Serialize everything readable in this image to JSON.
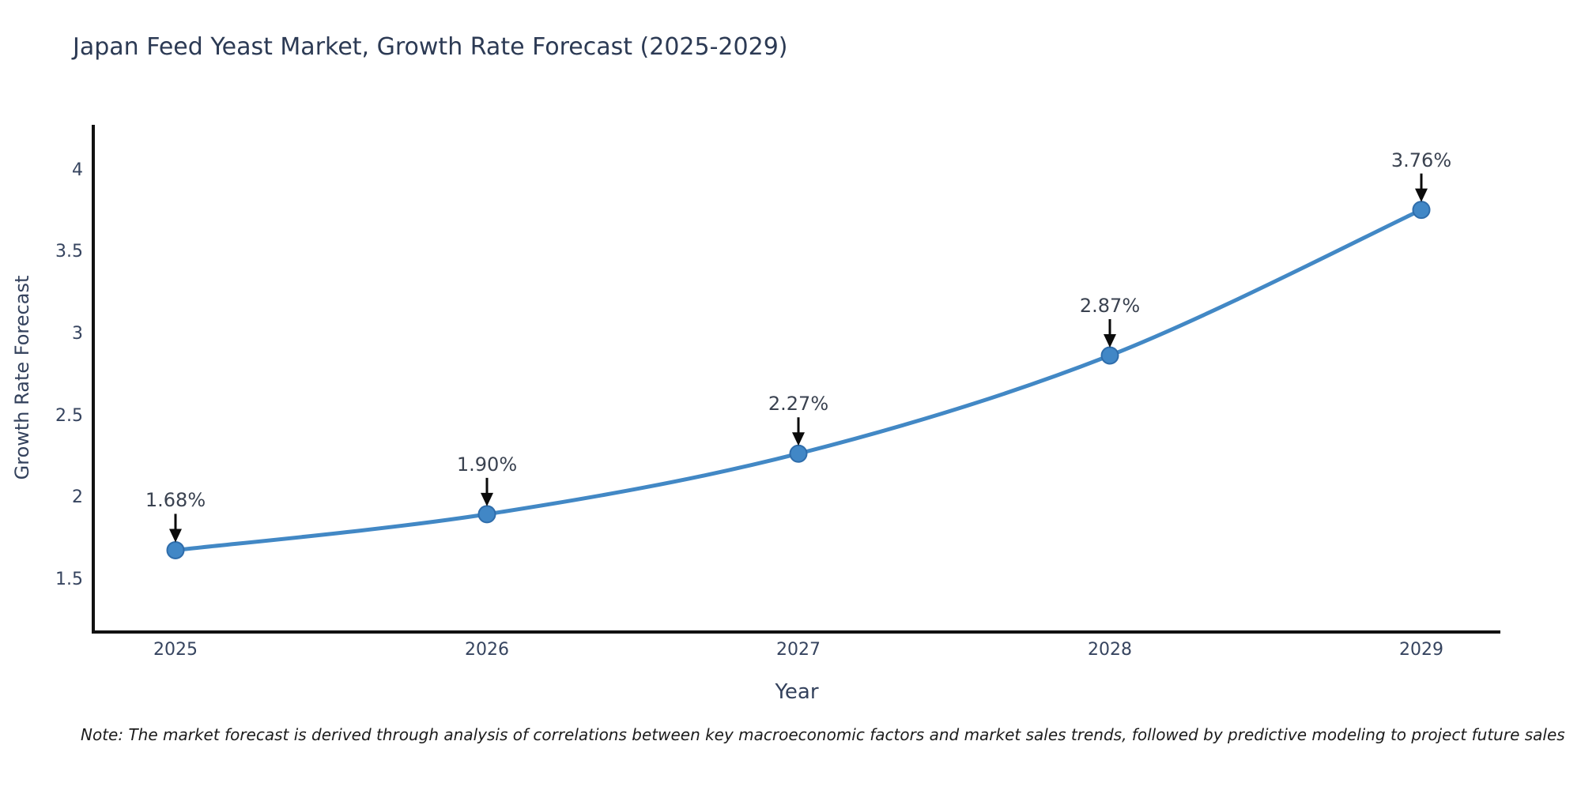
{
  "note": "Note: The market forecast is derived through analysis of correlations between key macroeconomic factors and market sales trends, followed by predictive modeling to project future sales",
  "chart_data": {
    "type": "line",
    "title": "Japan Feed Yeast Market, Growth Rate Forecast (2025-2029)",
    "xlabel": "Year",
    "ylabel": "Growth Rate Forecast",
    "categories": [
      "2025",
      "2026",
      "2027",
      "2028",
      "2029"
    ],
    "values": [
      1.68,
      1.9,
      2.27,
      2.87,
      3.76
    ],
    "point_labels": [
      "1.68%",
      "1.90%",
      "2.27%",
      "2.87%",
      "3.76%"
    ],
    "yticks": [
      1.5,
      2,
      2.5,
      3,
      3.5,
      4
    ],
    "ylim": [
      1.18,
      4.27
    ],
    "grid": false,
    "legend": "none",
    "line_color": "#4288c5",
    "marker_fill_color": "#4187c6",
    "marker_edge_color": "#2f6dab",
    "arrow_color": "#0b0b0b",
    "axis_color": "#111111",
    "annotation_text_color": "#3a4250",
    "tick_text_color": "#36445f",
    "title_color": "#2c3a54"
  }
}
